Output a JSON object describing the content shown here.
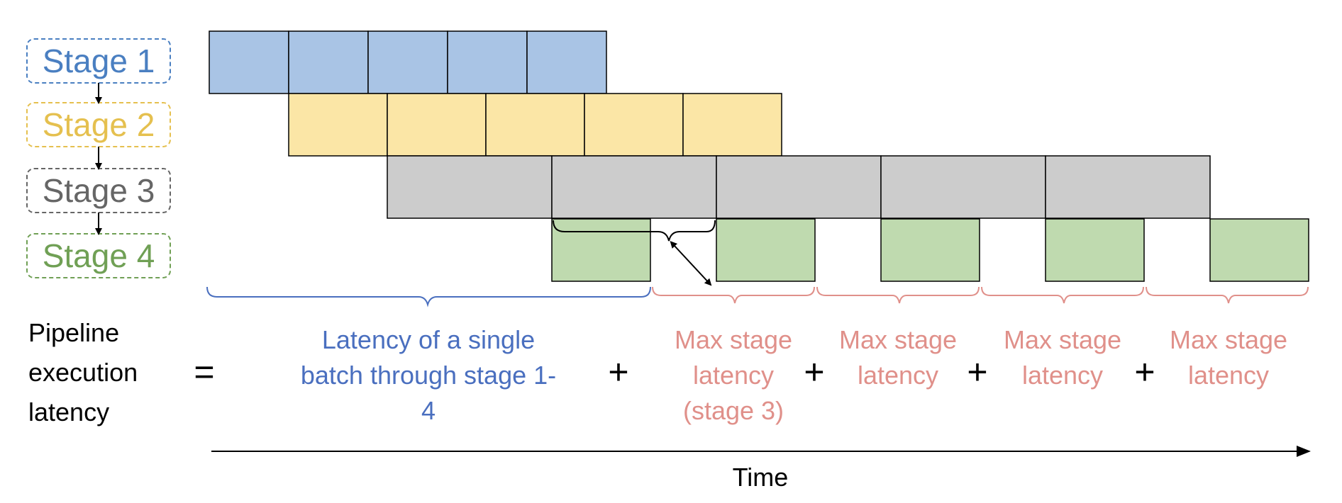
{
  "colors": {
    "stage1_fill": "#a9c4e5",
    "stage1_text": "#4a7fc1",
    "stage2_fill": "#fbe6a6",
    "stage2_text": "#e5c04f",
    "stage3_fill": "#cccccc",
    "stage3_text": "#666666",
    "stage4_fill": "#bfdaaf",
    "stage4_text": "#70a055",
    "single_batch_text": "#4a6fbf",
    "max_stage_text": "#e0908a"
  },
  "stages": [
    {
      "label": "Stage 1"
    },
    {
      "label": "Stage 2"
    },
    {
      "label": "Stage 3"
    },
    {
      "label": "Stage 4"
    }
  ],
  "equation": {
    "lhs_lines": [
      "Pipeline",
      "execution",
      "latency"
    ],
    "equals": "=",
    "plus": "+",
    "single_batch_lines": [
      "Latency of a single",
      "batch through stage 1-",
      "4"
    ],
    "max_stage_first_lines": [
      "Max stage",
      "latency",
      "(stage 3)"
    ],
    "max_stage_lines": [
      "Max stage",
      "latency"
    ]
  },
  "axis": {
    "label": "Time"
  }
}
